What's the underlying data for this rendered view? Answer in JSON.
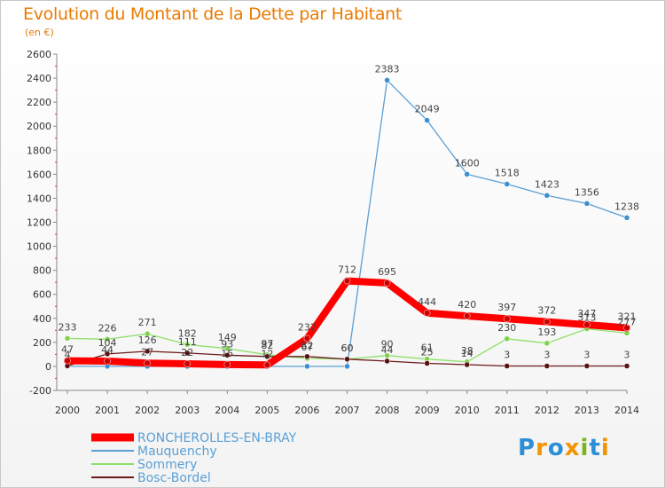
{
  "header": {
    "title": "Evolution du Montant de la Dette par Habitant",
    "subtitle": "(en €)"
  },
  "logo": {
    "letters": [
      "P",
      "r",
      "o",
      "x",
      "i",
      "t",
      "i"
    ],
    "colors": [
      "#2c8fd6",
      "#f29400",
      "#2c8fd6",
      "#f29400",
      "#7ab51d",
      "#2c8fd6",
      "#f29400"
    ]
  },
  "chart_data": {
    "type": "line",
    "title": "Evolution du Montant de la Dette par Habitant",
    "subtitle": "(en €)",
    "x": [
      "2000",
      "2001",
      "2002",
      "2003",
      "2004",
      "2005",
      "2006",
      "2007",
      "2008",
      "2009",
      "2010",
      "2011",
      "2012",
      "2013",
      "2014"
    ],
    "ylim": [
      -200,
      2600
    ],
    "yticks": [
      -200,
      0,
      200,
      400,
      600,
      800,
      1000,
      1200,
      1400,
      1600,
      1800,
      2000,
      2200,
      2400,
      2600
    ],
    "grid": false,
    "legend_position": "bottom-left",
    "series": [
      {
        "name": "RONCHEROLLES-EN-BRAY",
        "color": "#ff0000",
        "line_width": 8,
        "values": [
          47,
          44,
          27,
          22,
          15,
          12,
          232,
          712,
          695,
          444,
          420,
          397,
          372,
          347,
          321
        ],
        "labels": [
          "47",
          "44",
          "27",
          "22",
          "15",
          "12",
          "232",
          "712",
          "695",
          "444",
          "420",
          "397",
          "372",
          "347",
          "321"
        ]
      },
      {
        "name": "Mauquenchy",
        "color": "#5b9fd4",
        "line_width": 1.3,
        "values": [
          0,
          0,
          0,
          0,
          0,
          0,
          0,
          0,
          2383,
          2049,
          1600,
          1518,
          1423,
          1356,
          1238
        ],
        "labels": [
          "",
          "",
          "",
          "",
          "",
          "",
          "",
          "",
          "2383",
          "2049",
          "1600",
          "1518",
          "1423",
          "1356",
          "1238"
        ]
      },
      {
        "name": "Sommery",
        "color": "#8ee06a",
        "line_width": 1.3,
        "values": [
          233,
          226,
          271,
          182,
          149,
          97,
          67,
          60,
          90,
          61,
          38,
          230,
          193,
          313,
          277
        ],
        "labels": [
          "233",
          "226",
          "271",
          "182",
          "149",
          "97",
          "67",
          "60",
          "90",
          "61",
          "38",
          "230",
          "193",
          "313",
          "277"
        ]
      },
      {
        "name": "Bosc-Bordel",
        "color": "#6b1a1a",
        "line_width": 1.3,
        "values": [
          4,
          104,
          126,
          111,
          93,
          82,
          82,
          60,
          44,
          25,
          14,
          3,
          3,
          3,
          3
        ],
        "labels": [
          "4",
          "104",
          "126",
          "111",
          "93",
          "82",
          "82",
          "60",
          "44",
          "25",
          "14",
          "3",
          "3",
          "3",
          "3"
        ]
      }
    ]
  }
}
